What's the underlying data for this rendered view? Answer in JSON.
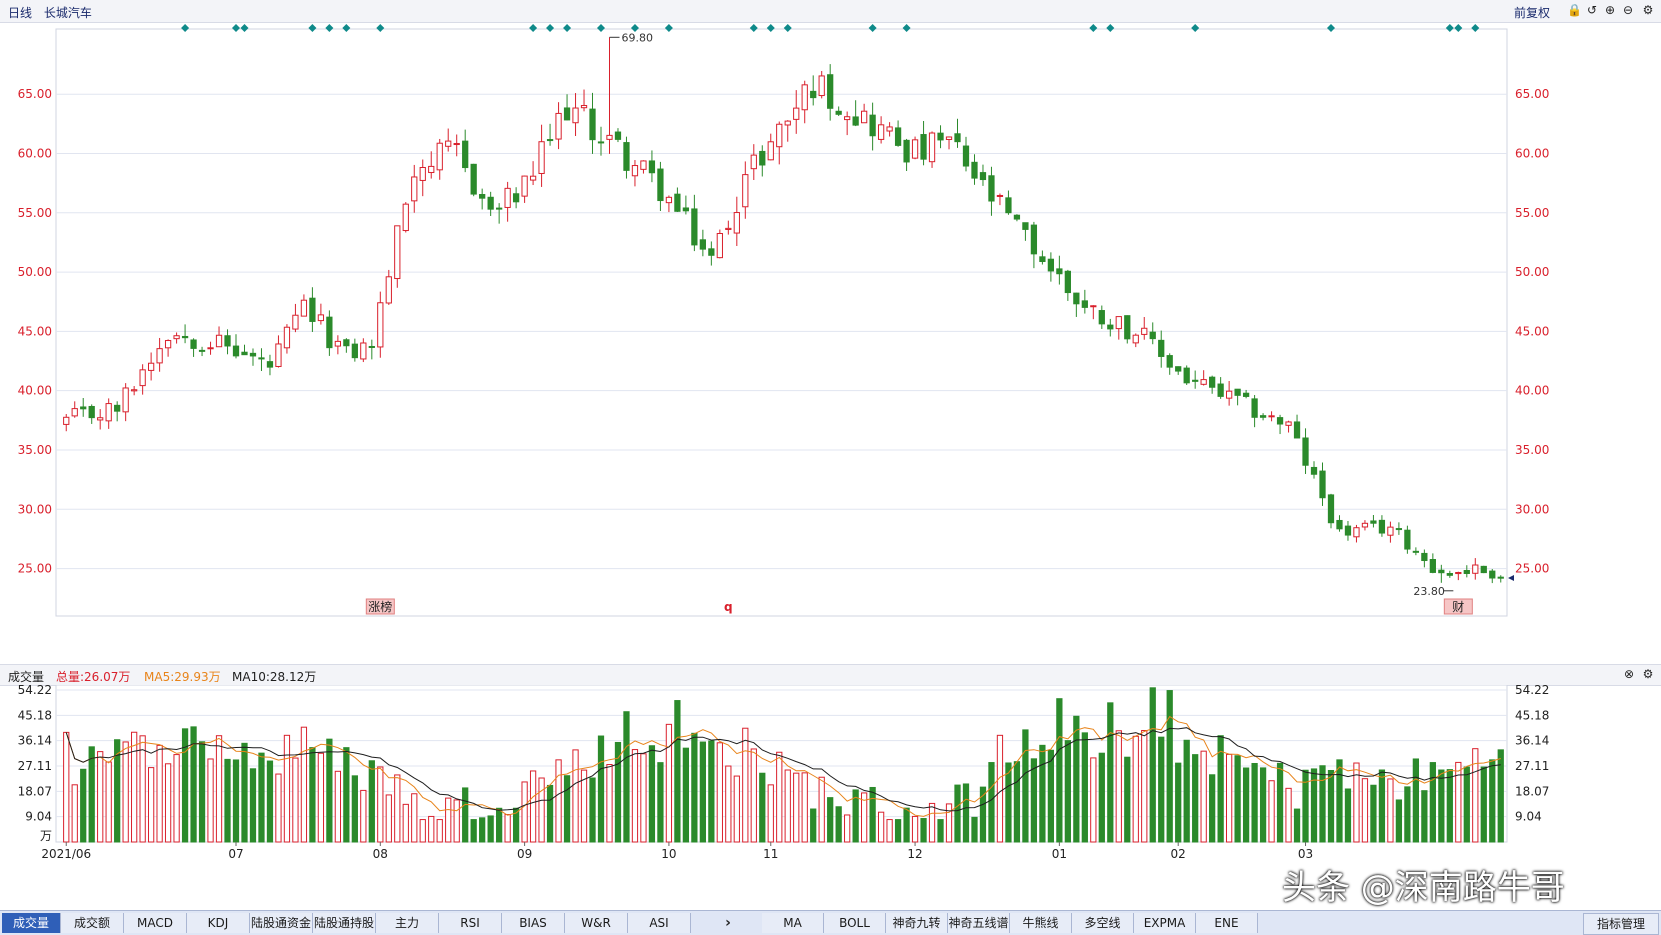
{
  "header": {
    "period": "日线",
    "name": "长城汽车",
    "adjust": "前复权"
  },
  "toolbar_icons": [
    "lock-icon",
    "undo-icon",
    "zoom-in-icon",
    "zoom-out-icon",
    "gear-icon"
  ],
  "chart_data": [
    {
      "type": "candlestick",
      "y_ticks": [
        "65.00",
        "60.00",
        "55.00",
        "50.00",
        "45.00",
        "40.00",
        "35.00",
        "30.00",
        "25.00"
      ],
      "y_tick_values": [
        65,
        60,
        55,
        50,
        45,
        40,
        35,
        30,
        25
      ],
      "ylim": [
        21,
        70.5
      ],
      "high_label": "69.80",
      "low_label": "23.80",
      "high_value": 69.8,
      "low_value": 23.8,
      "candle_count": 170,
      "high_index": 64,
      "low_index": 162,
      "anchors": [
        [
          0,
          37.5
        ],
        [
          6,
          38.5
        ],
        [
          12,
          45
        ],
        [
          18,
          44
        ],
        [
          24,
          42
        ],
        [
          28,
          47
        ],
        [
          33,
          43
        ],
        [
          36,
          44
        ],
        [
          41,
          59
        ],
        [
          46,
          60
        ],
        [
          50,
          55
        ],
        [
          54,
          57
        ],
        [
          59,
          64
        ],
        [
          64,
          61
        ],
        [
          70,
          57
        ],
        [
          76,
          51
        ],
        [
          80,
          58
        ],
        [
          84,
          62
        ],
        [
          88,
          66
        ],
        [
          94,
          63
        ],
        [
          100,
          60
        ],
        [
          104,
          61
        ],
        [
          108,
          57
        ],
        [
          114,
          52
        ],
        [
          120,
          47
        ],
        [
          126,
          45
        ],
        [
          132,
          41
        ],
        [
          138,
          39
        ],
        [
          144,
          37
        ],
        [
          150,
          28
        ],
        [
          156,
          28.5
        ],
        [
          162,
          24.5
        ],
        [
          166,
          25
        ],
        [
          170,
          24.2
        ]
      ],
      "markers": {
        "zhangbang": "涨榜",
        "q": "q",
        "cai": "财"
      }
    },
    {
      "type": "bar",
      "indicator": "成交量",
      "total_label": "总量:26.07万",
      "ma5_label": "MA5:29.93万",
      "ma10_label": "MA10:28.12万",
      "y_ticks": [
        "54.22",
        "45.18",
        "36.14",
        "27.11",
        "18.07",
        "9.04"
      ],
      "y_tick_values": [
        54.22,
        45.18,
        36.14,
        27.11,
        18.07,
        9.04
      ],
      "ylim": [
        0,
        56
      ],
      "unit": "万",
      "x_labels": [
        "2021/06",
        "07",
        "08",
        "09",
        "10",
        "11",
        "12",
        "01",
        "02",
        "03"
      ],
      "x_label_index": [
        0,
        20,
        37,
        54,
        71,
        83,
        100,
        117,
        131,
        146
      ]
    }
  ],
  "colors": {
    "up": "#d9202c",
    "down": "#2b8a2b",
    "grid": "#e1e5f0",
    "ma5": "#e8841a",
    "ma10": "#1e1e1e",
    "diamond": "#0f8a8a"
  },
  "tabs_left": [
    "成交量",
    "成交额",
    "MACD",
    "KDJ",
    "陆股通资金",
    "陆股通持股",
    "主力",
    "RSI",
    "BIAS",
    "W&R",
    "ASI"
  ],
  "tabs_right": [
    "MA",
    "BOLL",
    "神奇九转",
    "神奇五线谱",
    "牛熊线",
    "多空线",
    "EXPMA",
    "ENE"
  ],
  "more_button": "指标管理",
  "watermark": "头条 @深南路牛哥"
}
